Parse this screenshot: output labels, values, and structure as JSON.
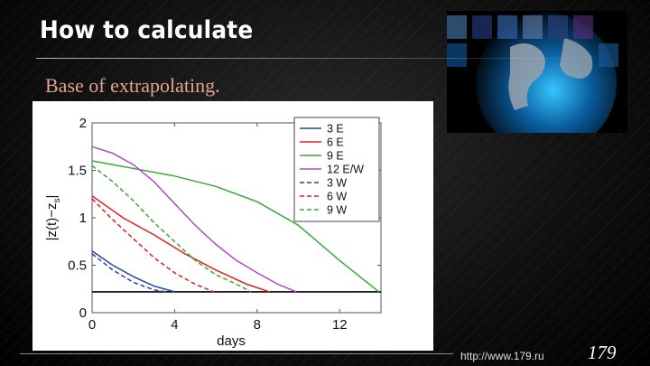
{
  "slide": {
    "title": "How to calculate",
    "subtitle": "Base of extrapolating.",
    "footer_url": "http://www.179.ru",
    "page_number": "179"
  },
  "colors": {
    "subtitle": "#e2a48d",
    "series_blue": "#2743a5",
    "series_red": "#e02020",
    "series_green": "#3aa83a",
    "series_purple": "#b049c0",
    "baseline": "#000000"
  },
  "chart_data": {
    "type": "line",
    "xlabel": "days",
    "ylabel": "|z(t)−z_s|",
    "xlim": [
      0,
      14
    ],
    "ylim": [
      0,
      2
    ],
    "xticks": [
      0,
      4,
      8,
      12
    ],
    "yticks": [
      0,
      0.5,
      1,
      1.5,
      2
    ],
    "grid": false,
    "legend_position": "top-right",
    "baseline_y": 0.22,
    "series": [
      {
        "name": "3 E",
        "color": "#2743a5",
        "dash": false,
        "points": [
          [
            0,
            0.65
          ],
          [
            1,
            0.5
          ],
          [
            2,
            0.38
          ],
          [
            3,
            0.28
          ],
          [
            4,
            0.22
          ]
        ]
      },
      {
        "name": "6 E",
        "color": "#e02020",
        "dash": false,
        "points": [
          [
            0,
            1.23
          ],
          [
            1.5,
            1.0
          ],
          [
            3,
            0.82
          ],
          [
            4.5,
            0.62
          ],
          [
            6,
            0.45
          ],
          [
            7.5,
            0.3
          ],
          [
            8.6,
            0.22
          ]
        ]
      },
      {
        "name": "9 E",
        "color": "#3aa83a",
        "dash": false,
        "points": [
          [
            0,
            1.6
          ],
          [
            2,
            1.52
          ],
          [
            4,
            1.44
          ],
          [
            6,
            1.33
          ],
          [
            8,
            1.17
          ],
          [
            10,
            0.92
          ],
          [
            12,
            0.55
          ],
          [
            13.9,
            0.22
          ]
        ]
      },
      {
        "name": "12 E/W",
        "color": "#b049c0",
        "dash": false,
        "points": [
          [
            0,
            1.75
          ],
          [
            1,
            1.68
          ],
          [
            2,
            1.56
          ],
          [
            3,
            1.38
          ],
          [
            4,
            1.15
          ],
          [
            5,
            0.92
          ],
          [
            6,
            0.72
          ],
          [
            7,
            0.55
          ],
          [
            8,
            0.42
          ],
          [
            9,
            0.3
          ],
          [
            9.9,
            0.22
          ]
        ]
      },
      {
        "name": "3 W",
        "color": "#2743a5",
        "dash": true,
        "points": [
          [
            0,
            0.62
          ],
          [
            1,
            0.45
          ],
          [
            2,
            0.32
          ],
          [
            3,
            0.24
          ],
          [
            3.6,
            0.22
          ]
        ]
      },
      {
        "name": "6 W",
        "color": "#e02020",
        "dash": true,
        "points": [
          [
            0,
            1.2
          ],
          [
            1,
            0.98
          ],
          [
            2,
            0.78
          ],
          [
            3,
            0.58
          ],
          [
            4,
            0.42
          ],
          [
            5,
            0.3
          ],
          [
            5.9,
            0.22
          ]
        ]
      },
      {
        "name": "9 W",
        "color": "#3aa83a",
        "dash": true,
        "points": [
          [
            0,
            1.55
          ],
          [
            1,
            1.38
          ],
          [
            2,
            1.18
          ],
          [
            3,
            0.95
          ],
          [
            4,
            0.75
          ],
          [
            5,
            0.55
          ],
          [
            6,
            0.4
          ],
          [
            7,
            0.3
          ],
          [
            7.7,
            0.22
          ]
        ]
      }
    ]
  }
}
